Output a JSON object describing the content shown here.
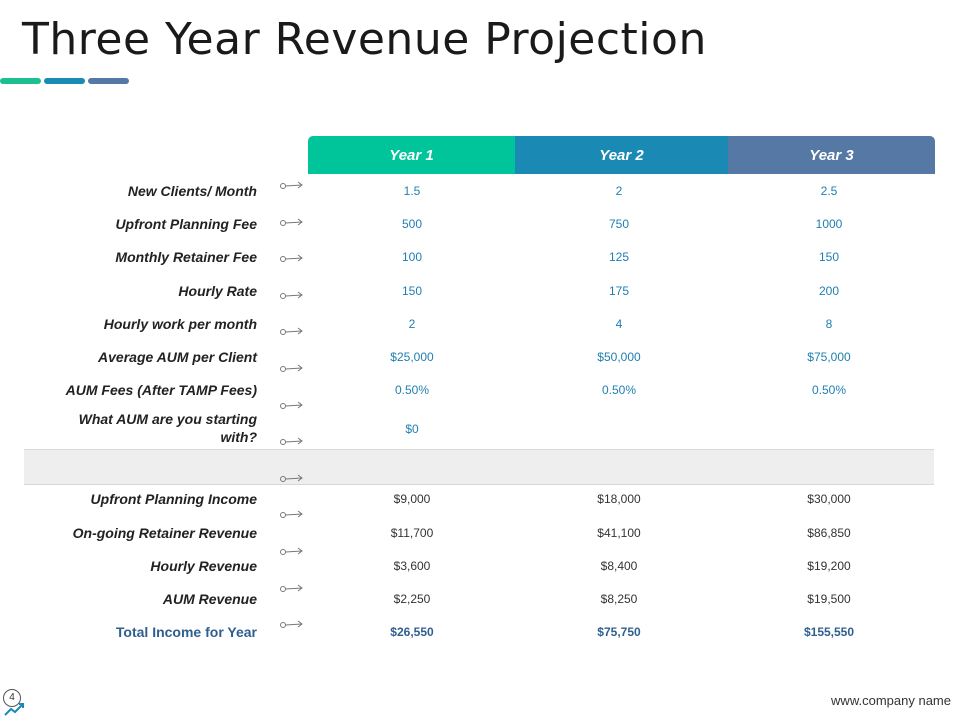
{
  "title": "Three Year Revenue Projection",
  "headers": [
    "Year 1",
    "Year 2",
    "Year 3"
  ],
  "rows": [
    {
      "label": "New Clients/ Month",
      "values": [
        "1.5",
        "2",
        "2.5"
      ]
    },
    {
      "label": "Upfront Planning Fee",
      "values": [
        "500",
        "750",
        "1000"
      ]
    },
    {
      "label": "Monthly Retainer Fee",
      "values": [
        "100",
        "125",
        "150"
      ]
    },
    {
      "label": "Hourly Rate",
      "values": [
        "150",
        "175",
        "200"
      ]
    },
    {
      "label": "Hourly work per month",
      "values": [
        "2",
        "4",
        "8"
      ]
    },
    {
      "label": "Average AUM per Client",
      "values": [
        "$25,000",
        "$50,000",
        "$75,000"
      ]
    },
    {
      "label": "AUM Fees (After TAMP Fees)",
      "values": [
        "0.50%",
        "0.50%",
        "0.50%"
      ]
    },
    {
      "label_line1": "What AUM are you starting",
      "label_line2": "with?",
      "values": [
        "$0"
      ]
    }
  ],
  "income_rows": [
    {
      "label": "Upfront Planning Income",
      "values": [
        "$9,000",
        "$18,000",
        "$30,000"
      ]
    },
    {
      "label": "On-going Retainer Revenue",
      "values": [
        "$11,700",
        "$41,100",
        "$86,850"
      ]
    },
    {
      "label": "Hourly Revenue",
      "values": [
        "$3,600",
        "$8,400",
        "$19,200"
      ]
    },
    {
      "label": "AUM Revenue",
      "values": [
        "$2,250",
        "$8,250",
        "$19,500"
      ]
    }
  ],
  "total_row": {
    "label": "Total Income for Year",
    "values": [
      "$26,550",
      "$75,750",
      "$155,550"
    ]
  },
  "footer": {
    "page_number": "4",
    "website": "www.company name"
  },
  "colors": {
    "year1": "#00c59a",
    "year2": "#1a8ab5",
    "year3": "#5578a5",
    "value_blue": "#1f7fb0",
    "total_blue": "#2f5f8f"
  }
}
